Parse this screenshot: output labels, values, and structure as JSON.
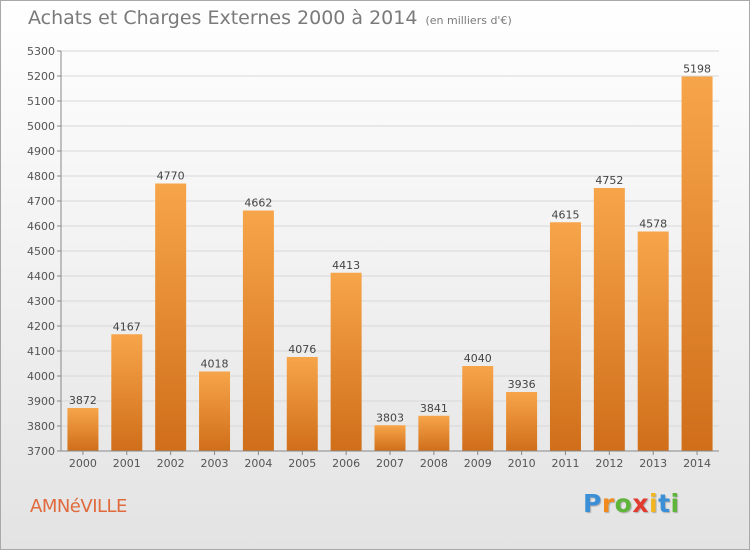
{
  "title": "Achats et Charges Externes 2000 à 2014",
  "unit": "(en milliers d'€)",
  "city": "AMNéVILLE",
  "brand": {
    "letters": [
      "P",
      "r",
      "o",
      "x",
      "i",
      "t",
      "i"
    ],
    "colors": [
      "#3b8fd6",
      "#f08a1e",
      "#5fb43a",
      "#e23a2e",
      "#f2b51d",
      "#3b8fd6",
      "#5fb43a"
    ]
  },
  "colors": {
    "bar_top": "#f7a54a",
    "bar_bottom": "#d06e1a",
    "grid": "#d8d8d8",
    "city": "#e06a3c",
    "title": "#7a7a7a"
  },
  "chart_data": {
    "type": "bar",
    "categories": [
      "2000",
      "2001",
      "2002",
      "2003",
      "2004",
      "2005",
      "2006",
      "2007",
      "2008",
      "2009",
      "2010",
      "2011",
      "2012",
      "2013",
      "2014"
    ],
    "values": [
      3872,
      4167,
      4770,
      4018,
      4662,
      4076,
      4413,
      3803,
      3841,
      4040,
      3936,
      4615,
      4752,
      4578,
      5198
    ],
    "title": "Achats et Charges Externes 2000 à 2014",
    "xlabel": "",
    "ylabel": "",
    "ylim": [
      3700,
      5300
    ],
    "yticks": [
      3700,
      3800,
      3900,
      4000,
      4100,
      4200,
      4300,
      4400,
      4500,
      4600,
      4700,
      4800,
      4900,
      5000,
      5100,
      5200,
      5300
    ],
    "grid": true,
    "data_labels": true
  }
}
